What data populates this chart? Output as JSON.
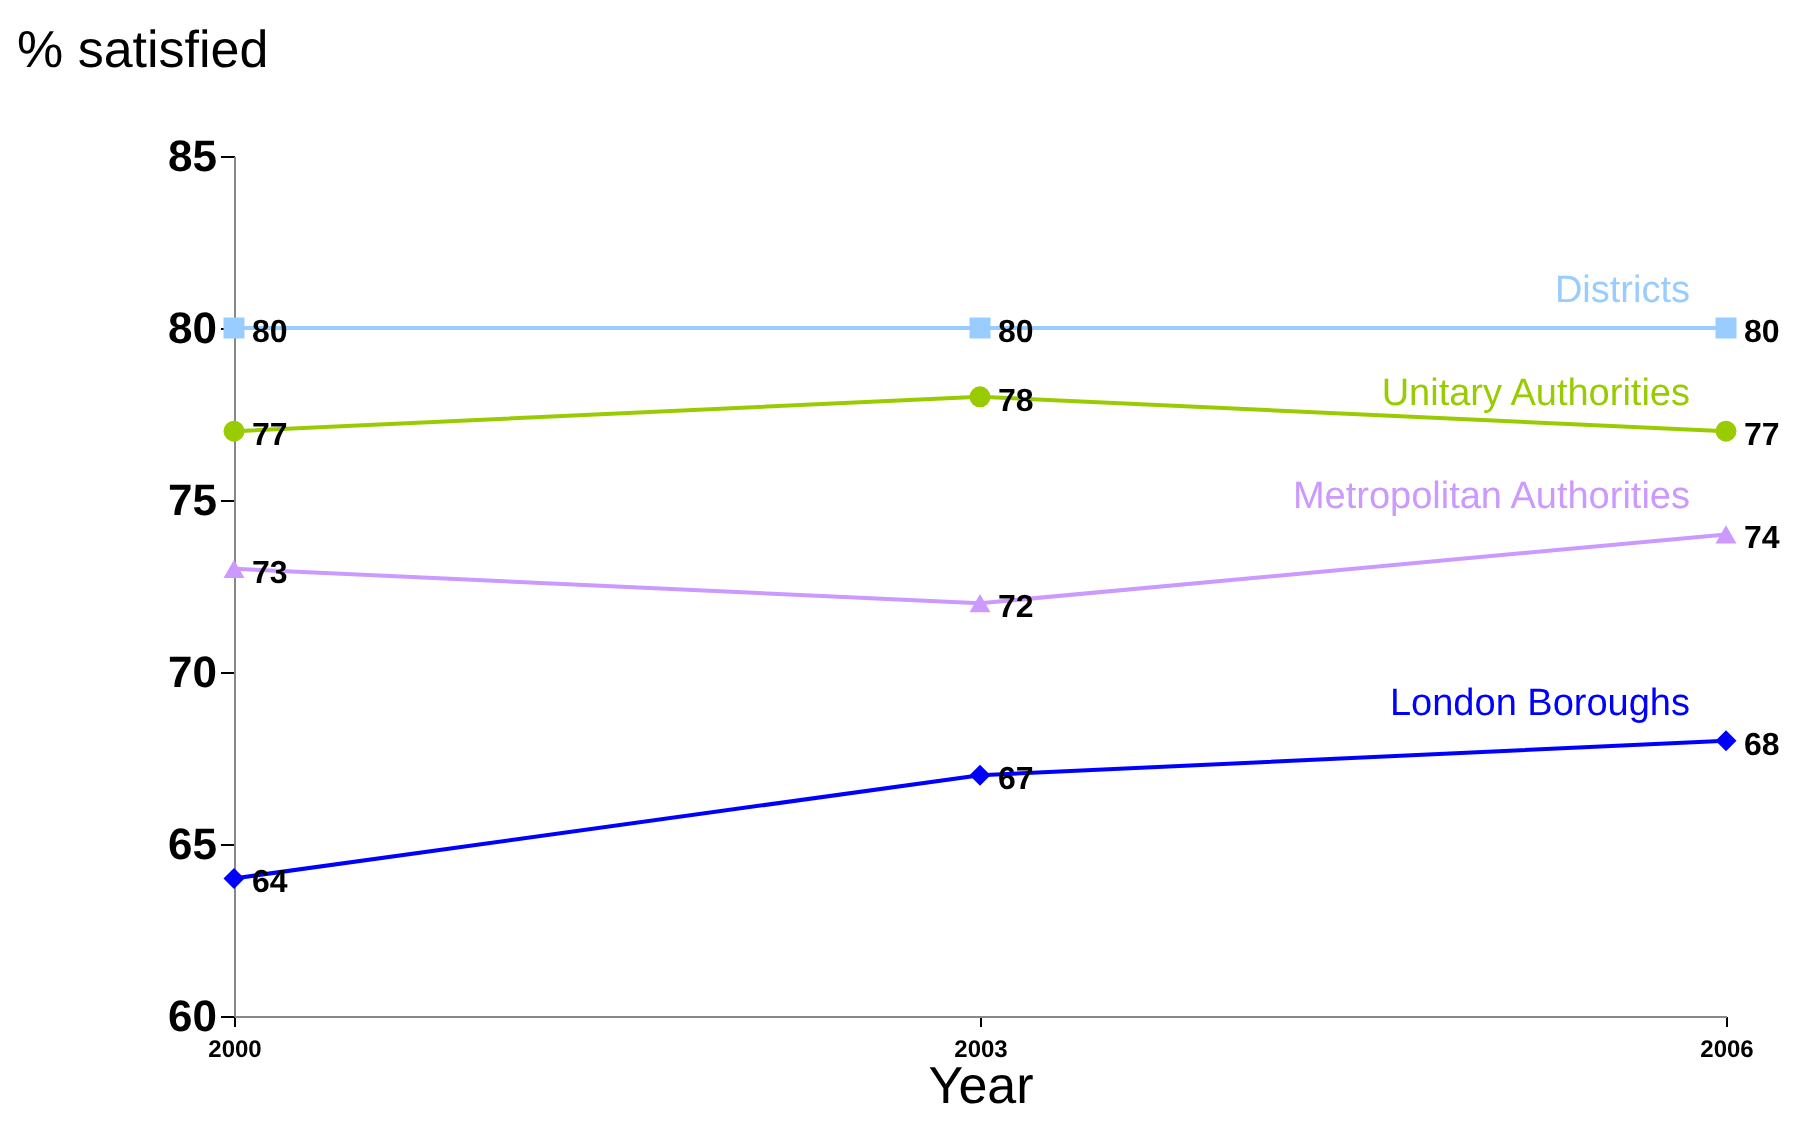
{
  "chart_data": {
    "type": "line",
    "xlabel": "Year",
    "ylabel": "% satisfied",
    "categories": [
      "2000",
      "2003",
      "2006"
    ],
    "series": [
      {
        "name": "Districts",
        "color": "#99ccff",
        "marker": "square",
        "values": [
          80,
          80,
          80
        ]
      },
      {
        "name": "Unitary Authorities",
        "color": "#99cc00",
        "marker": "circle",
        "values": [
          77,
          78,
          77
        ]
      },
      {
        "name": "Metropolitan Authorities",
        "color": "#cc99ff",
        "marker": "triangle",
        "values": [
          73,
          72,
          74
        ]
      },
      {
        "name": "London Boroughs",
        "color": "#0000ff",
        "marker": "diamond",
        "values": [
          64,
          67,
          68
        ]
      }
    ],
    "ylim": [
      60,
      85
    ],
    "yticks": [
      60,
      65,
      70,
      75,
      80,
      85
    ],
    "grid": false,
    "legend": false,
    "data_labels": true
  }
}
